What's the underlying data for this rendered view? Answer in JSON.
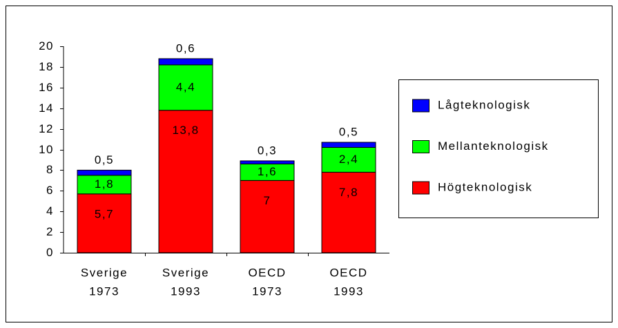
{
  "chart_data": {
    "type": "stacked_bar",
    "categories": [
      [
        "Sverige",
        "1973"
      ],
      [
        "Sverige",
        "1993"
      ],
      [
        "OECD",
        "1973"
      ],
      [
        "OECD",
        "1993"
      ]
    ],
    "series": [
      {
        "name": "Högteknologisk",
        "color": "#ff0000",
        "values": [
          5.7,
          13.8,
          7,
          7.8
        ],
        "value_labels": [
          "5,7",
          "13,8",
          "7",
          "7,8"
        ]
      },
      {
        "name": "Mellanteknologisk",
        "color": "#00ff00",
        "values": [
          1.8,
          4.4,
          1.6,
          2.4
        ],
        "value_labels": [
          "1,8",
          "4,4",
          "1,6",
          "2,4"
        ]
      },
      {
        "name": "Lågteknologisk",
        "color": "#0000ff",
        "values": [
          0.5,
          0.6,
          0.3,
          0.5
        ],
        "value_labels": [
          "0,5",
          "0,6",
          "0,3",
          "0,5"
        ]
      }
    ],
    "ylim": [
      0,
      20
    ],
    "yticks": [
      0,
      2,
      4,
      6,
      8,
      10,
      12,
      14,
      16,
      18,
      20
    ],
    "legend": "right"
  }
}
